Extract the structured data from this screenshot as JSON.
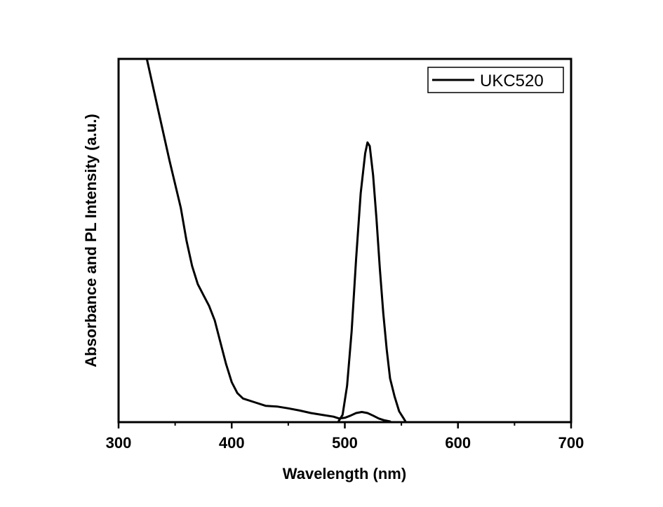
{
  "chart_data": {
    "type": "line",
    "title": "",
    "xlabel": "Wavelength (nm)",
    "ylabel": "Absorbance and PL Intensity (a.u.)",
    "xlim": [
      300,
      700
    ],
    "ylim": [
      0,
      1
    ],
    "x_ticks": [
      "300",
      "400",
      "500",
      "600",
      "700"
    ],
    "y_ticks_shown": false,
    "grid": false,
    "legend": {
      "position": "top-right",
      "entries": [
        "UKC520"
      ]
    },
    "color": "#000000",
    "series": [
      {
        "name": "UKC520",
        "points": [
          [
            325,
            1.0
          ],
          [
            335,
            0.86
          ],
          [
            345,
            0.72
          ],
          [
            355,
            0.59
          ],
          [
            360,
            0.5
          ],
          [
            365,
            0.43
          ],
          [
            370,
            0.38
          ],
          [
            375,
            0.35
          ],
          [
            380,
            0.32
          ],
          [
            385,
            0.28
          ],
          [
            390,
            0.22
          ],
          [
            395,
            0.16
          ],
          [
            400,
            0.11
          ],
          [
            405,
            0.08
          ],
          [
            410,
            0.065
          ],
          [
            420,
            0.055
          ],
          [
            430,
            0.045
          ],
          [
            440,
            0.043
          ],
          [
            450,
            0.038
          ],
          [
            460,
            0.032
          ],
          [
            470,
            0.025
          ],
          [
            480,
            0.02
          ],
          [
            490,
            0.015
          ],
          [
            495,
            0.01
          ],
          [
            500,
            0.012
          ],
          [
            505,
            0.018
          ],
          [
            510,
            0.025
          ],
          [
            515,
            0.028
          ],
          [
            520,
            0.025
          ],
          [
            525,
            0.018
          ],
          [
            530,
            0.01
          ],
          [
            535,
            0.005
          ],
          [
            540,
            0.002
          ]
        ]
      },
      {
        "name": "",
        "points": [
          [
            494,
            0.0
          ],
          [
            498,
            0.02
          ],
          [
            502,
            0.1
          ],
          [
            506,
            0.25
          ],
          [
            510,
            0.45
          ],
          [
            514,
            0.63
          ],
          [
            518,
            0.74
          ],
          [
            520,
            0.77
          ],
          [
            522,
            0.76
          ],
          [
            525,
            0.68
          ],
          [
            528,
            0.56
          ],
          [
            531,
            0.42
          ],
          [
            534,
            0.3
          ],
          [
            537,
            0.2
          ],
          [
            540,
            0.12
          ],
          [
            544,
            0.07
          ],
          [
            548,
            0.03
          ],
          [
            552,
            0.01
          ],
          [
            554,
            0.0
          ]
        ]
      }
    ]
  }
}
